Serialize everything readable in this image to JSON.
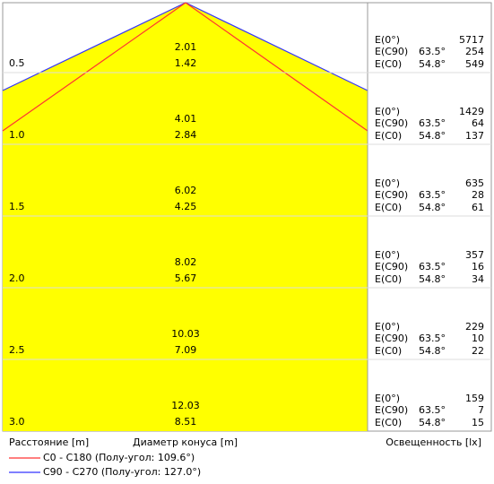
{
  "rows": [
    {
      "distance": "0.5",
      "diameter_c0": "2.01",
      "diameter_c90": "1.42",
      "e0_label": "E(0°)",
      "e0": "5717",
      "c90_label": "E(C90)",
      "c90_angle": "63.5°",
      "c90": "254",
      "c0_label": "E(C0)",
      "c0_angle": "54.8°",
      "c0": "549"
    },
    {
      "distance": "1.0",
      "diameter_c0": "4.01",
      "diameter_c90": "2.84",
      "e0_label": "E(0°)",
      "e0": "1429",
      "c90_label": "E(C90)",
      "c90_angle": "63.5°",
      "c90": "64",
      "c0_label": "E(C0)",
      "c0_angle": "54.8°",
      "c0": "137"
    },
    {
      "distance": "1.5",
      "diameter_c0": "6.02",
      "diameter_c90": "4.25",
      "e0_label": "E(0°)",
      "e0": "635",
      "c90_label": "E(C90)",
      "c90_angle": "63.5°",
      "c90": "28",
      "c0_label": "E(C0)",
      "c0_angle": "54.8°",
      "c0": "61"
    },
    {
      "distance": "2.0",
      "diameter_c0": "8.02",
      "diameter_c90": "5.67",
      "e0_label": "E(0°)",
      "e0": "357",
      "c90_label": "E(C90)",
      "c90_angle": "63.5°",
      "c90": "16",
      "c0_label": "E(C0)",
      "c0_angle": "54.8°",
      "c0": "34"
    },
    {
      "distance": "2.5",
      "diameter_c0": "10.03",
      "diameter_c90": "7.09",
      "e0_label": "E(0°)",
      "e0": "229",
      "c90_label": "E(C90)",
      "c90_angle": "63.5°",
      "c90": "10",
      "c0_label": "E(C0)",
      "c0_angle": "54.8°",
      "c0": "22"
    },
    {
      "distance": "3.0",
      "diameter_c0": "12.03",
      "diameter_c90": "8.51",
      "e0_label": "E(0°)",
      "e0": "159",
      "c90_label": "E(C90)",
      "c90_angle": "63.5°",
      "c90": "7",
      "c0_label": "E(C0)",
      "c0_angle": "54.8°",
      "c0": "15"
    }
  ],
  "footer": {
    "distance_label": "Расстояние [m]",
    "diameter_label": "Диаметр конуса [m]",
    "illuminance_label": "Освещенность [lx]"
  },
  "legend": [
    "C0 - C180 (Полу-угол: 109.6°)",
    "C90 - C270 (Полу-угол: 127.0°)"
  ]
}
